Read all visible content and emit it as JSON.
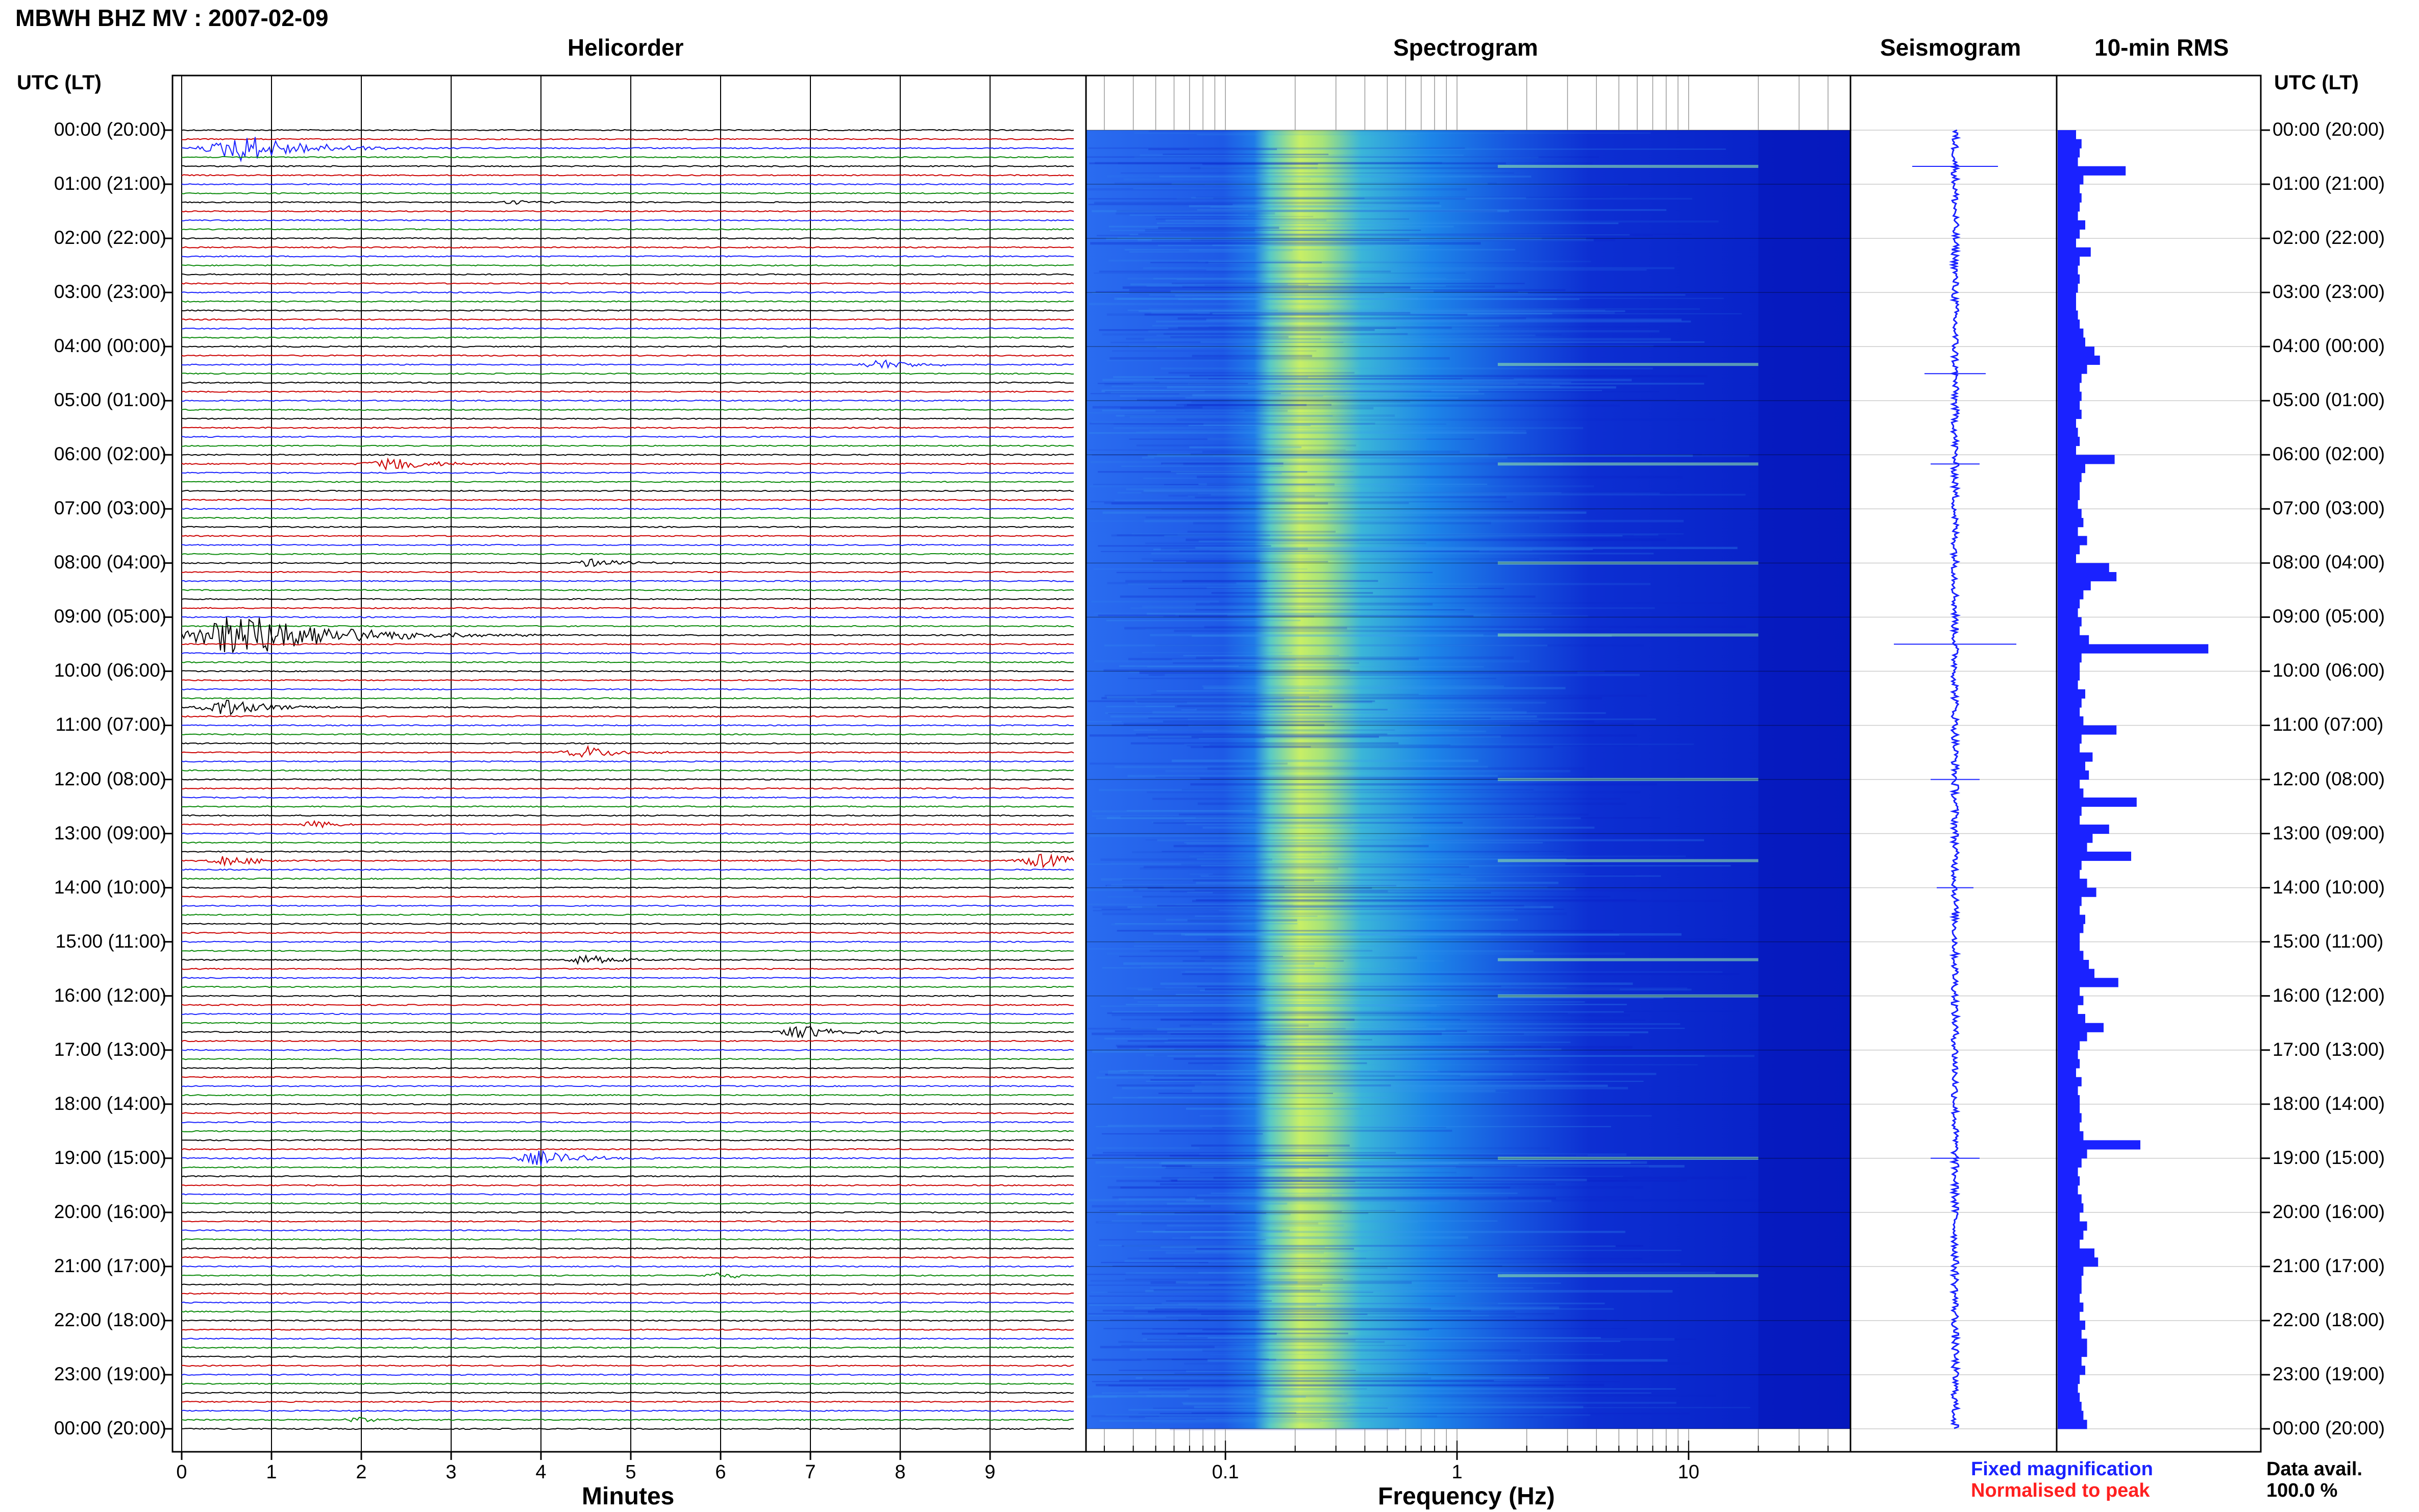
{
  "header": {
    "title": "MBWH BHZ MV : 2007-02-09"
  },
  "panels": {
    "helicorder": "Helicorder",
    "spectrogram": "Spectrogram",
    "seismogram": "Seismogram",
    "rms": "10-min RMS"
  },
  "time_axis": {
    "head_left": "UTC (LT)",
    "head_right": "UTC (LT)",
    "labels": [
      "00:00 (20:00)",
      "01:00 (21:00)",
      "02:00 (22:00)",
      "03:00 (23:00)",
      "04:00 (00:00)",
      "05:00 (01:00)",
      "06:00 (02:00)",
      "07:00 (03:00)",
      "08:00 (04:00)",
      "09:00 (05:00)",
      "10:00 (06:00)",
      "11:00 (07:00)",
      "12:00 (08:00)",
      "13:00 (09:00)",
      "14:00 (10:00)",
      "15:00 (11:00)",
      "16:00 (12:00)",
      "17:00 (13:00)",
      "18:00 (14:00)",
      "19:00 (15:00)",
      "20:00 (16:00)",
      "21:00 (17:00)",
      "22:00 (18:00)",
      "23:00 (19:00)",
      "00:00 (20:00)"
    ]
  },
  "legend": {
    "fixed": "Fixed magnification",
    "normalised": "Normalised to peak",
    "avail_label": "Data avail.",
    "avail_value": "100.0 %"
  },
  "colors": {
    "trace_cycle": [
      "#000000",
      "#cc0000",
      "#1a22ff",
      "#0a8a0a"
    ],
    "seismogram": "#1a22ff",
    "rms": "#1a22ff",
    "spectrogram_low": "#0a1ec8",
    "spectrogram_high": "#e8f23a"
  },
  "chart_data": [
    {
      "type": "line",
      "name": "helicorder",
      "xlabel": "Minutes",
      "x_ticks": [
        "0",
        "1",
        "2",
        "3",
        "4",
        "5",
        "6",
        "7",
        "8",
        "9"
      ],
      "xlim": [
        0,
        10
      ],
      "rows_per_hour": 6,
      "events": [
        {
          "hour": 0.33,
          "minute": 0.7,
          "amp": 3.0
        },
        {
          "hour": 1.33,
          "minute": 3.7,
          "amp": 0.6
        },
        {
          "hour": 4.33,
          "minute": 7.8,
          "amp": 1.2
        },
        {
          "hour": 6.17,
          "minute": 2.3,
          "amp": 1.6
        },
        {
          "hour": 8.0,
          "minute": 4.6,
          "amp": 1.0
        },
        {
          "hour": 9.33,
          "minute": 0.7,
          "amp": 5.0
        },
        {
          "hour": 10.67,
          "minute": 0.5,
          "amp": 1.8
        },
        {
          "hour": 11.5,
          "minute": 4.5,
          "amp": 1.3
        },
        {
          "hour": 12.83,
          "minute": 1.5,
          "amp": 0.8
        },
        {
          "hour": 13.5,
          "minute": 0.5,
          "amp": 1.2
        },
        {
          "hour": 13.5,
          "minute": 9.6,
          "amp": 1.6
        },
        {
          "hour": 15.33,
          "minute": 4.5,
          "amp": 1.2
        },
        {
          "hour": 16.67,
          "minute": 6.9,
          "amp": 1.5
        },
        {
          "hour": 19.0,
          "minute": 4.0,
          "amp": 1.6
        },
        {
          "hour": 21.17,
          "minute": 6.0,
          "amp": 0.8
        },
        {
          "hour": 23.83,
          "minute": 2.0,
          "amp": 0.6
        }
      ]
    },
    {
      "type": "heatmap",
      "name": "spectrogram",
      "xlabel": "Frequency (Hz)",
      "x_scale": "log",
      "xlim": [
        0.025,
        50
      ],
      "x_ticks": [
        "0.1",
        "1",
        "10"
      ],
      "x_tick_values": [
        0.1,
        1,
        10
      ],
      "peak_band_hz": [
        0.15,
        0.35
      ],
      "ylim_hours": [
        0,
        24
      ]
    },
    {
      "type": "line",
      "name": "seismogram",
      "ylim_hours": [
        0,
        24
      ],
      "spikes": [
        {
          "hour": 0.67,
          "amp": 0.7
        },
        {
          "hour": 4.5,
          "amp": 0.5
        },
        {
          "hour": 6.17,
          "amp": 0.4
        },
        {
          "hour": 9.5,
          "amp": 1.0
        },
        {
          "hour": 12.0,
          "amp": 0.4
        },
        {
          "hour": 14.0,
          "amp": 0.3
        },
        {
          "hour": 19.0,
          "amp": 0.4
        }
      ]
    },
    {
      "type": "bar",
      "name": "10-min RMS",
      "orientation": "horizontal",
      "ylim_hours": [
        0,
        24
      ],
      "values": [
        10,
        13,
        12,
        11,
        37,
        14,
        12,
        13,
        12,
        11,
        15,
        12,
        10,
        18,
        12,
        11,
        12,
        11,
        10,
        10,
        11,
        12,
        14,
        15,
        20,
        23,
        16,
        13,
        12,
        13,
        12,
        13,
        10,
        11,
        12,
        10,
        31,
        15,
        13,
        12,
        12,
        11,
        13,
        14,
        11,
        16,
        12,
        10,
        28,
        32,
        18,
        14,
        12,
        11,
        13,
        12,
        17,
        82,
        13,
        12,
        12,
        11,
        15,
        13,
        12,
        14,
        32,
        13,
        12,
        19,
        15,
        17,
        12,
        14,
        43,
        13,
        12,
        28,
        19,
        16,
        40,
        13,
        12,
        16,
        21,
        13,
        12,
        15,
        14,
        12,
        12,
        14,
        17,
        20,
        33,
        12,
        14,
        11,
        15,
        25,
        16,
        12,
        11,
        12,
        10,
        13,
        11,
        12,
        12,
        13,
        12,
        14,
        45,
        16,
        13,
        11,
        12,
        11,
        13,
        14,
        12,
        16,
        14,
        12,
        20,
        22,
        14,
        13,
        13,
        12,
        14,
        12,
        15,
        13,
        16,
        16,
        13,
        15,
        12,
        11,
        12,
        13,
        14,
        16
      ]
    }
  ]
}
